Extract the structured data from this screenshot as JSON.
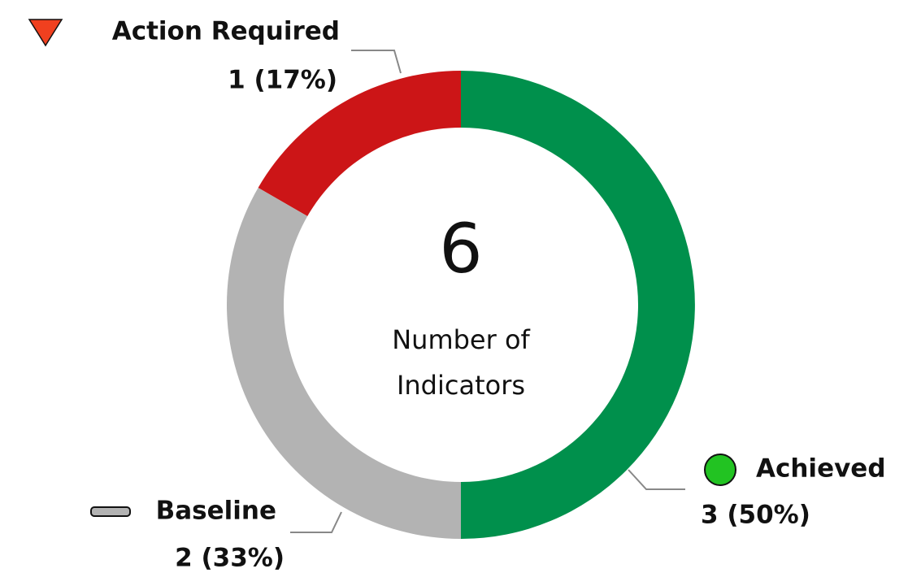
{
  "chart_data": {
    "type": "pie",
    "donut": true,
    "categories": [
      "Achieved",
      "Baseline",
      "Action Required"
    ],
    "values": [
      3,
      2,
      1
    ],
    "value_labels": [
      "3 (50%)",
      "2 (33%)",
      "1 (17%)"
    ],
    "colors": [
      "#00904c",
      "#b3b3b3",
      "#cc1517"
    ],
    "center_value": 6,
    "center_label": [
      "Number of",
      "Indicators"
    ]
  }
}
